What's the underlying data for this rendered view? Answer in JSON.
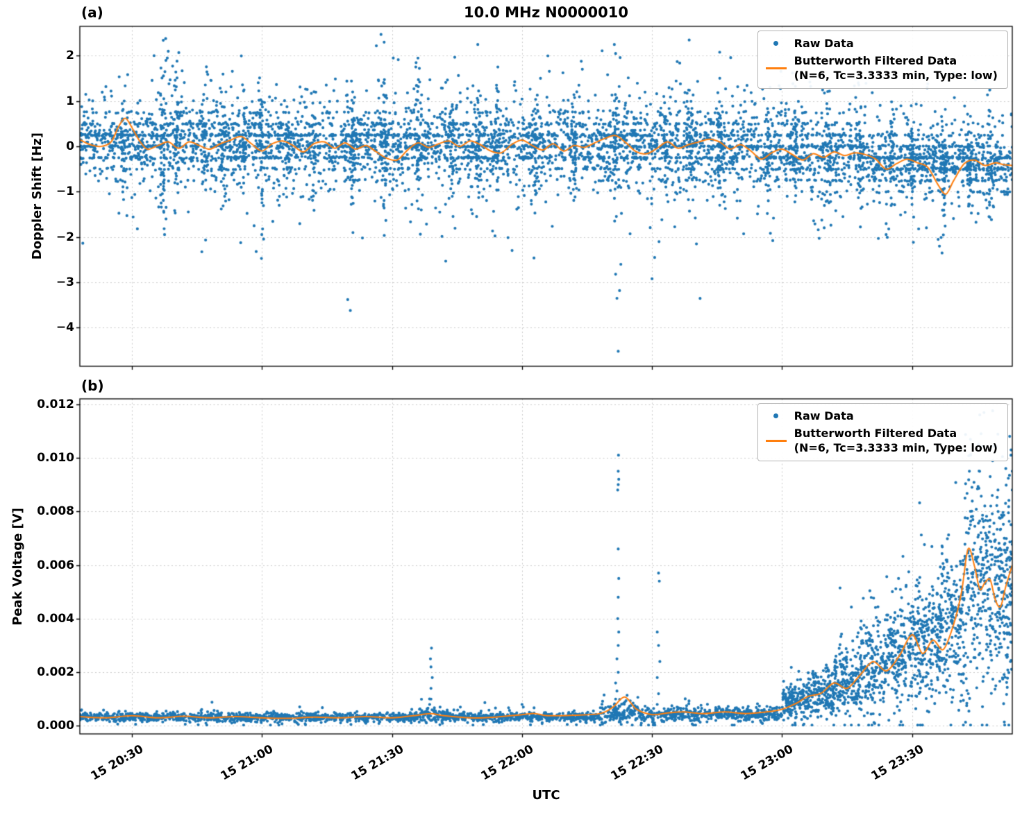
{
  "x_axis": {
    "label": "UTC",
    "ticks": [
      20.5,
      21.0,
      21.5,
      22.0,
      22.5,
      23.0,
      23.5
    ],
    "tick_labels": [
      "15 20:30",
      "15 21:00",
      "15 21:30",
      "15 22:00",
      "15 22:30",
      "15 23:00",
      "15 23:30"
    ]
  },
  "chart_data": [
    {
      "type": "scatter",
      "panel_label": "(a)",
      "title": "10.0 MHz N0000010",
      "ylabel": "Doppler Shift [Hz]",
      "xlim": [
        20.3,
        23.885
      ],
      "ylim": [
        -4.85,
        2.65
      ],
      "yticks": [
        2,
        1,
        0,
        -1,
        -2,
        -3,
        -4
      ],
      "ytick_labels": [
        "2",
        "1",
        "0",
        "−1",
        "−2",
        "−3",
        "−4"
      ],
      "grid": true,
      "legend_loc": "upper right",
      "legend": {
        "raw": "Raw Data",
        "filtered_line1": "Butterworth Filtered Data",
        "filtered_line2": "(N=6, Tc=3.3333 min, Type: low)"
      },
      "colors": {
        "raw": "#1f77b4",
        "filtered": "#ff7f0e"
      },
      "marker_size": 2.1,
      "raw_tail_frac": 0.25,
      "raw_tail_mult": 2.4,
      "quantize_step": 0.25,
      "quantize_frac": 0.45,
      "filtered_line": [
        [
          20.3,
          0.15
        ],
        [
          20.34,
          0.04
        ],
        [
          20.38,
          0.0
        ],
        [
          20.42,
          0.1
        ],
        [
          20.45,
          0.45
        ],
        [
          20.475,
          0.62
        ],
        [
          20.5,
          0.42
        ],
        [
          20.53,
          0.12
        ],
        [
          20.56,
          -0.06
        ],
        [
          20.6,
          0.02
        ],
        [
          20.64,
          0.1
        ],
        [
          20.68,
          -0.04
        ],
        [
          20.72,
          0.1
        ],
        [
          20.76,
          0.02
        ],
        [
          20.8,
          -0.06
        ],
        [
          20.84,
          0.06
        ],
        [
          20.88,
          0.14
        ],
        [
          20.92,
          0.22
        ],
        [
          20.96,
          0.06
        ],
        [
          21.0,
          -0.1
        ],
        [
          21.04,
          0.06
        ],
        [
          21.08,
          0.12
        ],
        [
          21.12,
          0.02
        ],
        [
          21.16,
          -0.12
        ],
        [
          21.2,
          0.06
        ],
        [
          21.24,
          0.1
        ],
        [
          21.28,
          -0.04
        ],
        [
          21.32,
          0.08
        ],
        [
          21.36,
          -0.06
        ],
        [
          21.4,
          0.02
        ],
        [
          21.44,
          -0.12
        ],
        [
          21.48,
          -0.26
        ],
        [
          21.52,
          -0.3
        ],
        [
          21.56,
          -0.08
        ],
        [
          21.6,
          0.08
        ],
        [
          21.64,
          -0.02
        ],
        [
          21.68,
          0.06
        ],
        [
          21.72,
          0.12
        ],
        [
          21.76,
          0.0
        ],
        [
          21.8,
          0.12
        ],
        [
          21.84,
          0.04
        ],
        [
          21.88,
          -0.1
        ],
        [
          21.92,
          -0.14
        ],
        [
          21.96,
          0.04
        ],
        [
          22.0,
          0.14
        ],
        [
          22.04,
          0.02
        ],
        [
          22.08,
          -0.08
        ],
        [
          22.12,
          0.06
        ],
        [
          22.16,
          -0.1
        ],
        [
          22.2,
          0.02
        ],
        [
          22.24,
          -0.02
        ],
        [
          22.28,
          0.08
        ],
        [
          22.32,
          0.18
        ],
        [
          22.36,
          0.24
        ],
        [
          22.4,
          0.08
        ],
        [
          22.44,
          -0.12
        ],
        [
          22.48,
          -0.16
        ],
        [
          22.52,
          -0.04
        ],
        [
          22.56,
          0.1
        ],
        [
          22.6,
          -0.04
        ],
        [
          22.64,
          0.04
        ],
        [
          22.68,
          0.1
        ],
        [
          22.72,
          0.16
        ],
        [
          22.76,
          0.1
        ],
        [
          22.8,
          -0.06
        ],
        [
          22.84,
          0.04
        ],
        [
          22.88,
          -0.1
        ],
        [
          22.92,
          -0.28
        ],
        [
          22.96,
          -0.14
        ],
        [
          23.0,
          -0.06
        ],
        [
          23.04,
          -0.18
        ],
        [
          23.08,
          -0.3
        ],
        [
          23.12,
          -0.16
        ],
        [
          23.16,
          -0.24
        ],
        [
          23.2,
          -0.12
        ],
        [
          23.24,
          -0.2
        ],
        [
          23.28,
          -0.14
        ],
        [
          23.32,
          -0.18
        ],
        [
          23.36,
          -0.28
        ],
        [
          23.4,
          -0.5
        ],
        [
          23.44,
          -0.38
        ],
        [
          23.48,
          -0.28
        ],
        [
          23.52,
          -0.36
        ],
        [
          23.56,
          -0.46
        ],
        [
          23.6,
          -0.85
        ],
        [
          23.63,
          -1.05
        ],
        [
          23.66,
          -0.75
        ],
        [
          23.7,
          -0.38
        ],
        [
          23.74,
          -0.3
        ],
        [
          23.78,
          -0.42
        ],
        [
          23.82,
          -0.36
        ],
        [
          23.85,
          -0.4
        ],
        [
          23.885,
          -0.42
        ]
      ],
      "raw_base_segments": [
        [
          20.3,
          20.6,
          0.1,
          0.32,
          430
        ],
        [
          20.6,
          21.0,
          0.08,
          0.38,
          580
        ],
        [
          21.0,
          21.5,
          0.05,
          0.36,
          720
        ],
        [
          21.5,
          22.0,
          0.05,
          0.36,
          720
        ],
        [
          22.0,
          22.5,
          0.06,
          0.36,
          720
        ],
        [
          22.5,
          22.9,
          0.02,
          0.38,
          580
        ],
        [
          22.9,
          23.3,
          -0.12,
          0.36,
          580
        ],
        [
          23.3,
          23.6,
          -0.3,
          0.33,
          440
        ],
        [
          23.6,
          23.885,
          -0.38,
          0.28,
          420
        ]
      ],
      "raw_bursts": [
        [
          20.47,
          0.55,
          35
        ],
        [
          20.62,
          0.95,
          55
        ],
        [
          20.67,
          0.75,
          40
        ],
        [
          20.78,
          0.55,
          30
        ],
        [
          20.85,
          0.65,
          40
        ],
        [
          20.93,
          0.7,
          40
        ],
        [
          21.0,
          0.75,
          45
        ],
        [
          21.1,
          0.55,
          30
        ],
        [
          21.2,
          0.6,
          35
        ],
        [
          21.35,
          0.7,
          45
        ],
        [
          21.47,
          0.8,
          45
        ],
        [
          21.6,
          0.85,
          50
        ],
        [
          21.73,
          0.6,
          35
        ],
        [
          21.83,
          0.65,
          35
        ],
        [
          21.9,
          0.65,
          40
        ],
        [
          22.05,
          0.6,
          35
        ],
        [
          22.2,
          0.6,
          35
        ],
        [
          22.36,
          0.8,
          50
        ],
        [
          22.55,
          0.6,
          35
        ],
        [
          22.65,
          0.55,
          30
        ],
        [
          22.76,
          0.7,
          45
        ],
        [
          22.95,
          0.65,
          40
        ],
        [
          23.05,
          0.6,
          40
        ],
        [
          23.18,
          0.55,
          35
        ],
        [
          23.3,
          0.6,
          40
        ],
        [
          23.42,
          0.55,
          35
        ],
        [
          23.5,
          0.55,
          40
        ],
        [
          23.62,
          0.6,
          45
        ],
        [
          23.72,
          0.5,
          35
        ],
        [
          23.8,
          0.5,
          40
        ]
      ],
      "raw_outliers": [
        [
          20.63,
          2.38
        ],
        [
          20.64,
          2.1
        ],
        [
          21.44,
          2.22
        ],
        [
          21.47,
          2.3
        ],
        [
          21.83,
          2.25
        ],
        [
          22.355,
          2.25
        ],
        [
          22.36,
          2.05
        ],
        [
          21.6,
          1.95
        ],
        [
          22.76,
          2.08
        ],
        [
          23.04,
          1.62
        ],
        [
          23.55,
          1.5
        ],
        [
          23.56,
          1.38
        ],
        [
          20.97,
          -1.75
        ],
        [
          21.33,
          -3.38
        ],
        [
          21.34,
          -3.62
        ],
        [
          21.35,
          -1.9
        ],
        [
          22.37,
          -4.52
        ],
        [
          22.365,
          -3.35
        ],
        [
          22.375,
          -3.18
        ],
        [
          22.36,
          -2.82
        ],
        [
          22.38,
          -2.6
        ],
        [
          22.5,
          -2.92
        ],
        [
          22.51,
          -2.45
        ],
        [
          23.41,
          -1.82
        ],
        [
          23.6,
          -2.05
        ],
        [
          23.605,
          -2.2
        ],
        [
          23.615,
          -2.35
        ],
        [
          23.62,
          -1.95
        ]
      ]
    },
    {
      "type": "scatter",
      "panel_label": "(b)",
      "title": "",
      "ylabel": "Peak Voltage [V]",
      "xlim": [
        20.3,
        23.885
      ],
      "ylim": [
        -0.0003,
        0.0122
      ],
      "yticks": [
        0,
        0.002,
        0.004,
        0.006,
        0.008,
        0.01,
        0.012
      ],
      "ytick_labels": [
        "0.000",
        "0.002",
        "0.004",
        "0.006",
        "0.008",
        "0.010",
        "0.012"
      ],
      "grid": true,
      "legend_loc": "upper right",
      "legend": {
        "raw": "Raw Data",
        "filtered_line1": "Butterworth Filtered Data",
        "filtered_line2": "(N=6, Tc=3.3333 min, Type: low)"
      },
      "colors": {
        "raw": "#1f77b4",
        "filtered": "#ff7f0e"
      },
      "marker_size": 2.1,
      "raw_tail_frac": 0.12,
      "raw_tail_mult": 2.0,
      "quantize_step": 0,
      "quantize_frac": 0,
      "filtered_line": [
        [
          20.3,
          0.00035
        ],
        [
          20.4,
          0.0003
        ],
        [
          20.5,
          0.00038
        ],
        [
          20.6,
          0.0003
        ],
        [
          20.7,
          0.00036
        ],
        [
          20.8,
          0.0003
        ],
        [
          20.9,
          0.00035
        ],
        [
          21.0,
          0.0003
        ],
        [
          21.1,
          0.00028
        ],
        [
          21.2,
          0.00033
        ],
        [
          21.3,
          0.0003
        ],
        [
          21.4,
          0.00035
        ],
        [
          21.5,
          0.0003
        ],
        [
          21.6,
          0.0004
        ],
        [
          21.65,
          0.00046
        ],
        [
          21.7,
          0.00038
        ],
        [
          21.8,
          0.0003
        ],
        [
          21.9,
          0.00033
        ],
        [
          22.0,
          0.00042
        ],
        [
          22.05,
          0.00046
        ],
        [
          22.1,
          0.00038
        ],
        [
          22.2,
          0.0004
        ],
        [
          22.3,
          0.00046
        ],
        [
          22.35,
          0.0007
        ],
        [
          22.395,
          0.00108
        ],
        [
          22.44,
          0.00062
        ],
        [
          22.5,
          0.00042
        ],
        [
          22.56,
          0.00048
        ],
        [
          22.62,
          0.00052
        ],
        [
          22.7,
          0.00046
        ],
        [
          22.78,
          0.00052
        ],
        [
          22.86,
          0.00046
        ],
        [
          22.94,
          0.00052
        ],
        [
          23.0,
          0.00062
        ],
        [
          23.05,
          0.00082
        ],
        [
          23.1,
          0.0011
        ],
        [
          23.15,
          0.00122
        ],
        [
          23.2,
          0.0016
        ],
        [
          23.25,
          0.0014
        ],
        [
          23.3,
          0.0019
        ],
        [
          23.35,
          0.0024
        ],
        [
          23.4,
          0.00205
        ],
        [
          23.45,
          0.0026
        ],
        [
          23.5,
          0.0034
        ],
        [
          23.54,
          0.0027
        ],
        [
          23.58,
          0.0032
        ],
        [
          23.62,
          0.00285
        ],
        [
          23.66,
          0.0038
        ],
        [
          23.69,
          0.005
        ],
        [
          23.715,
          0.0066
        ],
        [
          23.74,
          0.00595
        ],
        [
          23.76,
          0.0051
        ],
        [
          23.78,
          0.00535
        ],
        [
          23.8,
          0.00545
        ],
        [
          23.82,
          0.0047
        ],
        [
          23.84,
          0.00445
        ],
        [
          23.86,
          0.0052
        ],
        [
          23.885,
          0.006
        ]
      ],
      "raw_base_segments": [
        [
          20.3,
          21.6,
          0.00032,
          8e-05,
          1050
        ],
        [
          21.6,
          21.7,
          0.0004,
          0.00014,
          90
        ],
        [
          21.7,
          22.3,
          0.00033,
          8e-05,
          500
        ],
        [
          22.3,
          22.45,
          0.0005,
          0.0002,
          140
        ],
        [
          22.45,
          22.6,
          0.00042,
          0.00014,
          130
        ],
        [
          22.6,
          23.0,
          0.00044,
          0.00012,
          350
        ],
        [
          23.0,
          23.1,
          0.0009,
          0.00035,
          160
        ],
        [
          23.1,
          23.2,
          0.0012,
          0.00042,
          170
        ],
        [
          23.2,
          23.3,
          0.0017,
          0.0006,
          180
        ],
        [
          23.3,
          23.4,
          0.00225,
          0.0008,
          190
        ],
        [
          23.4,
          23.5,
          0.00285,
          0.00095,
          200
        ],
        [
          23.5,
          23.6,
          0.00305,
          0.0011,
          210
        ],
        [
          23.6,
          23.7,
          0.0039,
          0.0014,
          220
        ],
        [
          23.7,
          23.79,
          0.0055,
          0.002,
          200
        ],
        [
          23.79,
          23.885,
          0.0051,
          0.002,
          250
        ]
      ],
      "raw_bursts": [],
      "raw_outliers": [
        [
          21.645,
          0.0008
        ],
        [
          21.65,
          0.001
        ],
        [
          21.65,
          0.0014
        ],
        [
          21.655,
          0.0018
        ],
        [
          21.65,
          0.0022
        ],
        [
          21.648,
          0.0025
        ],
        [
          21.652,
          0.0029
        ],
        [
          22.0,
          0.0008
        ],
        [
          22.005,
          0.0007
        ],
        [
          22.355,
          0.0008
        ],
        [
          22.36,
          0.001
        ],
        [
          22.365,
          0.0013
        ],
        [
          22.36,
          0.0016
        ],
        [
          22.37,
          0.002
        ],
        [
          22.365,
          0.0025
        ],
        [
          22.37,
          0.003
        ],
        [
          22.372,
          0.0035
        ],
        [
          22.368,
          0.004
        ],
        [
          22.37,
          0.0048
        ],
        [
          22.372,
          0.0055
        ],
        [
          22.37,
          0.0066
        ],
        [
          22.368,
          0.0088
        ],
        [
          22.37,
          0.009
        ],
        [
          22.372,
          0.0092
        ],
        [
          22.37,
          0.0095
        ],
        [
          22.371,
          0.0101
        ],
        [
          22.52,
          0.0008
        ],
        [
          22.525,
          0.0012
        ],
        [
          22.52,
          0.0018
        ],
        [
          22.53,
          0.0024
        ],
        [
          22.525,
          0.003
        ],
        [
          22.52,
          0.0035
        ],
        [
          22.528,
          0.0054
        ],
        [
          22.525,
          0.0057
        ],
        [
          23.72,
          0.0095
        ],
        [
          23.725,
          0.0101
        ],
        [
          23.73,
          0.0089
        ],
        [
          23.755,
          0.0105
        ],
        [
          23.76,
          0.0116
        ],
        [
          23.765,
          0.0109
        ],
        [
          23.8,
          0.0093
        ],
        [
          23.83,
          0.0088
        ],
        [
          23.86,
          0.0096
        ],
        [
          23.875,
          0.0108
        ],
        [
          23.88,
          0.0101
        ],
        [
          23.885,
          0.0095
        ],
        [
          23.885,
          0.0088
        ]
      ]
    }
  ]
}
